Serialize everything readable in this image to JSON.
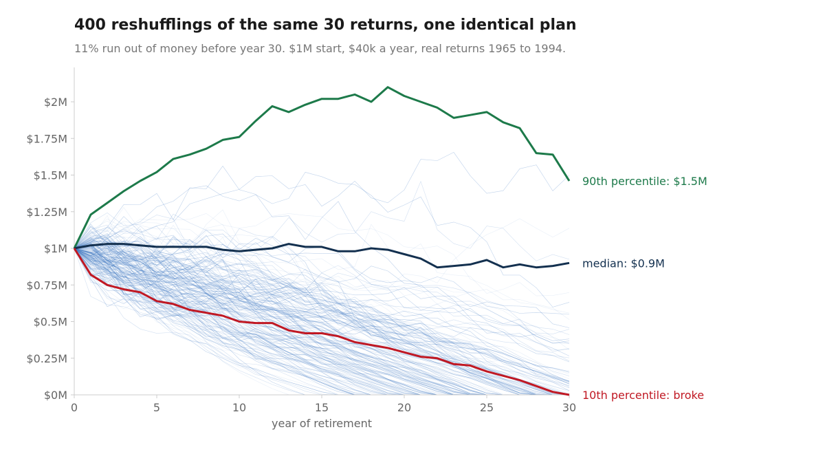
{
  "chart_data": {
    "type": "line",
    "title": "400 reshufflings of the same 30 returns, one identical plan",
    "subtitle": "11% run out of money before year 30. $1M start, $40k a year, real returns 1965 to 1994.",
    "xlabel": "year of retirement",
    "ylabel": "",
    "xlim": [
      0,
      30
    ],
    "ylim": [
      0,
      2.22
    ],
    "x_ticks": [
      0,
      5,
      10,
      15,
      20,
      25,
      30
    ],
    "x_tick_labels": [
      "0",
      "5",
      "10",
      "15",
      "20",
      "25",
      "30"
    ],
    "y_ticks": [
      0,
      0.25,
      0.5,
      0.75,
      1,
      1.25,
      1.5,
      1.75,
      2
    ],
    "y_tick_labels": [
      "$0M",
      "$0.25M",
      "$0.5M",
      "$0.75M",
      "$1M",
      "$1.25M",
      "$1.5M",
      "$1.75M",
      "$2M"
    ],
    "grid": false,
    "background_paths": 400,
    "background_color": "#4a86c8",
    "x": [
      0,
      1,
      2,
      3,
      4,
      5,
      6,
      7,
      8,
      9,
      10,
      11,
      12,
      13,
      14,
      15,
      16,
      17,
      18,
      19,
      20,
      21,
      22,
      23,
      24,
      25,
      26,
      27,
      28,
      29,
      30
    ],
    "series": [
      {
        "key": "p90",
        "color": "#1d7a4a",
        "end_label": "90th percentile: $1.5M",
        "values": [
          1.0,
          1.23,
          1.31,
          1.39,
          1.46,
          1.52,
          1.61,
          1.64,
          1.68,
          1.74,
          1.76,
          1.87,
          1.97,
          1.93,
          1.98,
          2.02,
          2.02,
          2.05,
          2.0,
          2.1,
          2.04,
          2.0,
          1.96,
          1.89,
          1.91,
          1.93,
          1.86,
          1.82,
          1.65,
          1.64,
          1.46
        ]
      },
      {
        "key": "median",
        "color": "#13304f",
        "end_label": "median: $0.9M",
        "values": [
          1.0,
          1.02,
          1.03,
          1.03,
          1.02,
          1.01,
          1.01,
          1.01,
          1.01,
          0.99,
          0.98,
          0.99,
          1.0,
          1.03,
          1.01,
          1.01,
          0.98,
          0.98,
          1.0,
          0.99,
          0.96,
          0.93,
          0.87,
          0.88,
          0.89,
          0.92,
          0.87,
          0.89,
          0.87,
          0.88,
          0.9
        ]
      },
      {
        "key": "p10",
        "color": "#c01823",
        "end_label": "10th percentile: broke",
        "values": [
          1.0,
          0.82,
          0.75,
          0.72,
          0.7,
          0.64,
          0.62,
          0.58,
          0.56,
          0.54,
          0.5,
          0.49,
          0.49,
          0.44,
          0.42,
          0.42,
          0.4,
          0.36,
          0.34,
          0.32,
          0.29,
          0.26,
          0.25,
          0.21,
          0.2,
          0.16,
          0.13,
          0.1,
          0.06,
          0.02,
          0.0
        ]
      }
    ]
  }
}
